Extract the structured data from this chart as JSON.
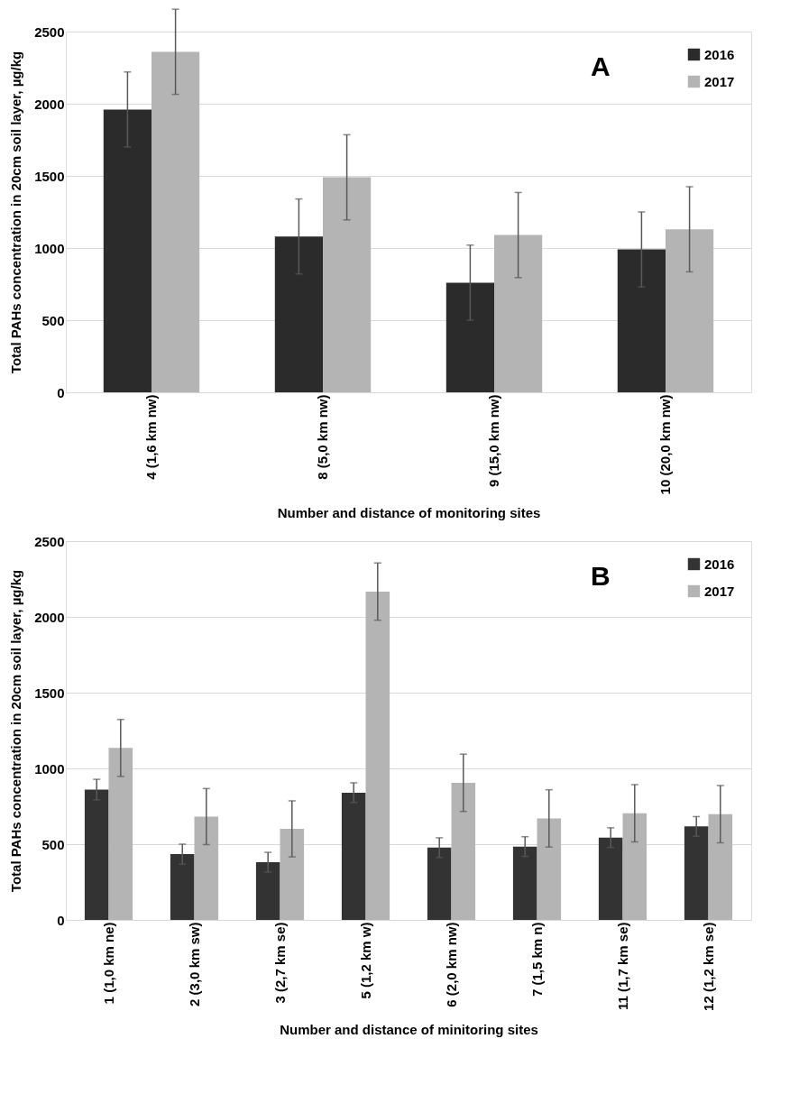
{
  "chart_data": [
    {
      "type": "bar",
      "categories": [
        "4 (1,6 km nw)",
        "8 (5,0 km nw)",
        "9 (15,0 km nw)",
        "10 (20,0 km nw)"
      ],
      "xlabel": "Number and distance of monitoring sites",
      "ylabel": "Total PAHs concentration in 20cm soil layer, µg/kg",
      "ylim": [
        0,
        2500
      ],
      "yticks": [
        0,
        500,
        1000,
        1500,
        2000,
        2500
      ],
      "grid": "y",
      "legend": "top right",
      "annotations": [
        "A"
      ],
      "series": [
        {
          "name": "2016",
          "color": "#2b2b2b",
          "values": [
            1960,
            1080,
            760,
            990
          ],
          "errors": [
            260,
            260,
            260,
            260
          ]
        },
        {
          "name": "2017",
          "color": "#b4b4b4",
          "values": [
            2360,
            1490,
            1090,
            1130
          ],
          "errors": [
            295,
            295,
            295,
            295
          ]
        }
      ]
    },
    {
      "type": "bar",
      "categories": [
        "1 (1,0 km ne)",
        "2 (3,0 km sw)",
        "3 (2,7 km se)",
        "5 (1,2 km w)",
        "6 (2,0 km nw)",
        "7 (1,5 km n)",
        "11 (1,7 km se)",
        "12 (1,2 km se)"
      ],
      "xlabel": "Number and distance of minitoring sites",
      "ylabel": "Total PAHs concentration in 20cm soil layer, µg/kg",
      "ylim": [
        0,
        2500
      ],
      "yticks": [
        0,
        500,
        1000,
        1500,
        2000,
        2500
      ],
      "grid": "y",
      "legend": "top right",
      "annotations": [
        "B"
      ],
      "series": [
        {
          "name": "2016",
          "color": "#333333",
          "values": [
            860,
            434,
            381,
            840,
            477,
            484,
            543,
            617
          ],
          "errors": [
            68,
            66,
            65,
            65,
            65,
            65,
            65,
            65
          ]
        },
        {
          "name": "2017",
          "color": "#b4b4b4",
          "values": [
            1135,
            682,
            601,
            2167,
            905,
            670,
            704,
            698
          ],
          "errors": [
            188,
            185,
            185,
            189,
            189,
            189,
            189,
            189
          ]
        }
      ]
    }
  ]
}
